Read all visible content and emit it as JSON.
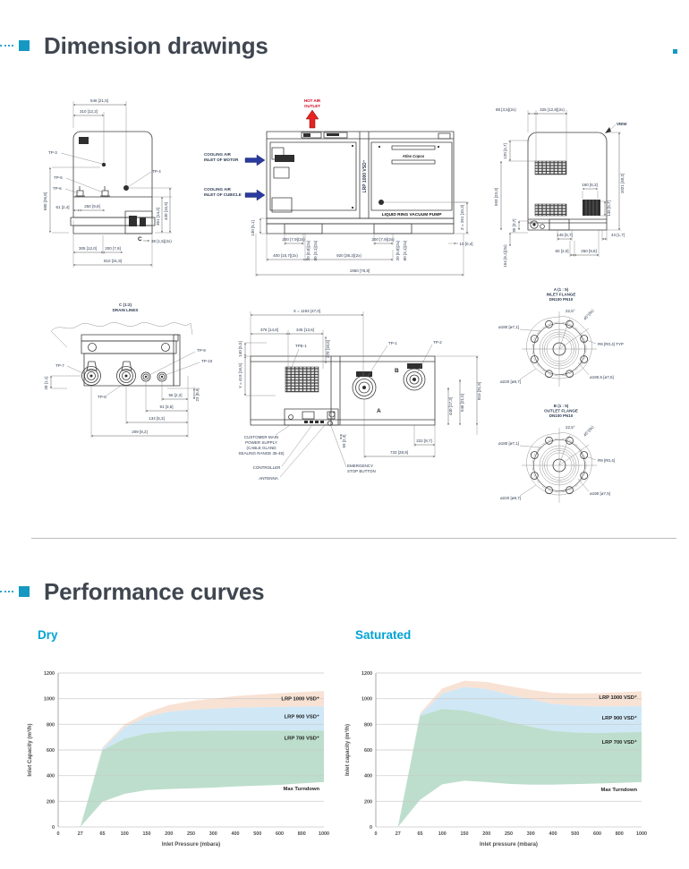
{
  "page": {
    "accent_color": "#1598c2",
    "headings": {
      "dimension": "Dimension drawings",
      "performance": "Performance curves"
    }
  },
  "drawings": {
    "front": {
      "labels": [
        "546 [21,5]",
        "310 [12,2]",
        "TP-3",
        "TP-4",
        "TP-5",
        "TP-6",
        "680 [26,8]",
        "61 [2,4]",
        "250 [9,8]",
        "361 [14,2]",
        "430 [16,9]",
        "C",
        "38 [1,5](2x)",
        "305 [12,0]",
        "200 [7,9]",
        "810 [31,9]"
      ]
    },
    "side": {
      "labels": [
        "HOT AIR",
        "OUTLET",
        "COOLING AIR",
        "INLET OF MOTOR",
        "COOLING AIR",
        "INLET OF CUBICLE",
        "LRP 1000 VSD⁺",
        "Atlas Copco",
        "LIQUID RING VACUUM PUMP",
        "130 [5,1]",
        "200 [7,9](2x)",
        "20 [0,8](2x)",
        "80 [3,1](2x)",
        "200 [7,9](2x)",
        "20 [0,8](2x)",
        "80 [3,1](2x)",
        "10 [0,4]",
        "400 [15,7](2x)",
        "920 [36,2](2x)",
        "1950 [76,8]",
        "Z = 261 [10,3]"
      ]
    },
    "rear": {
      "labels": [
        "88 [3,5](2x)",
        "325 [12,8](2x)",
        "VIEW",
        "120 [4,7]",
        "593 [23,3]",
        "95 [3,7]",
        "154 [6,1](3x)",
        "1021 [40,2]",
        "160 [6,3]",
        "145 [5,7]",
        "145 [5,7]",
        "43 [1,7]",
        "50 [2,0]",
        "250 [9,8]"
      ]
    },
    "drain": {
      "labels": [
        "C (1:2)",
        "DRAIN LINES",
        "TP-7",
        "TP-8",
        "TP-9",
        "TP-10",
        "28 [1,1]",
        "56 [2,2]",
        "23 [0,9]",
        "91 [3,6]",
        "134 [5,3]",
        "209 [8,2]"
      ]
    },
    "plan": {
      "labels": [
        "X = 1193 [47,0]",
        "376 [14,8]",
        "345 [13,6]",
        "270 [10,6]",
        "140 [5,5]",
        "Y = 419 [16,5]",
        "TPE-1",
        "TP-1",
        "TP-2",
        "A",
        "B",
        "810 [31,9]",
        "546 [21,5]",
        "440 [17,3]",
        "59 [2,3]",
        "222 [8,7]",
        "733 [28,9]",
        "CUSTOMER MAIN",
        "POWER SUPPLY",
        "(CABLE GLAND",
        "SEALING RANGE 35-45)",
        "CONTROLLER",
        "ANTENNA",
        "EMERGENCY",
        "STOP BUTTON"
      ]
    },
    "flange_a": {
      "labels": [
        "A (1 : 5)",
        "INLET FLANGE",
        "DN100 PN10",
        "22,5°",
        "45°(8x)",
        "ø180 [ø7,1]",
        "R9 [R0,4] TYP",
        "ø190,5 [ø7,5]",
        "ø220 [ø8,7]"
      ]
    },
    "flange_b": {
      "labels": [
        "B (1 : 5)",
        "OUTLET FLANGE",
        "DN100 PN10",
        "22,5°",
        "45°(8x)",
        "ø180 [ø7,1]",
        "R9 [R0,4]",
        "ø190 [ø7,5]",
        "ø220 [ø8,7]"
      ]
    }
  },
  "chart_data": [
    {
      "type": "area",
      "title": "Dry",
      "xlabel": "Inlet Pressure (mbara)",
      "ylabel": "Inlet Capacity (m³/h)",
      "x_categories": [
        0,
        27,
        65,
        100,
        150,
        200,
        250,
        300,
        400,
        500,
        600,
        800,
        1000
      ],
      "y_ticks": [
        0,
        200,
        400,
        600,
        800,
        1000,
        1200
      ],
      "ylim": [
        0,
        1200
      ],
      "grid": "horizontal",
      "legend_position": "inside-right",
      "series": [
        {
          "name": "LRP 1000 VSD⁺",
          "fill": "#f8e0d2",
          "values": [
            null,
            0,
            620,
            800,
            890,
            950,
            980,
            1000,
            1020,
            1032,
            1042,
            1052,
            1060
          ]
        },
        {
          "name": "LRP 900 VSD⁺",
          "fill": "#cde6f5",
          "values": [
            null,
            0,
            608,
            778,
            858,
            898,
            913,
            922,
            930,
            934,
            936,
            939,
            940
          ]
        },
        {
          "name": "LRP 700 VSD⁺",
          "fill": "#b9dcc9",
          "values": [
            null,
            0,
            598,
            688,
            730,
            744,
            748,
            750,
            751,
            751,
            751,
            751,
            750
          ]
        },
        {
          "name": "Max Turndown",
          "fill": "none",
          "values": [
            null,
            0,
            196,
            258,
            288,
            296,
            301,
            306,
            316,
            322,
            328,
            340,
            350
          ]
        }
      ],
      "annotations": [
        {
          "text": "LRP 1000 VSD⁺",
          "y": 1000
        },
        {
          "text": "LRP 900 VSD⁺",
          "y": 860
        },
        {
          "text": "LRP 700 VSD⁺",
          "y": 695
        },
        {
          "text": "Max Turndown",
          "y": 300
        }
      ]
    },
    {
      "type": "area",
      "title": "Saturated",
      "xlabel": "Inlet pressure (mbara)",
      "ylabel": "Inlet capacity (m³/h)",
      "x_categories": [
        0,
        27,
        65,
        100,
        150,
        200,
        250,
        300,
        400,
        500,
        600,
        800,
        1000
      ],
      "y_ticks": [
        0,
        200,
        400,
        600,
        800,
        1000,
        1200
      ],
      "ylim": [
        0,
        1200
      ],
      "grid": "horizontal",
      "legend_position": "inside-right",
      "series": [
        {
          "name": "LRP 1000 VSD⁺",
          "fill": "#f8e0d2",
          "values": [
            null,
            0,
            888,
            1080,
            1140,
            1130,
            1098,
            1068,
            1045,
            1040,
            1042,
            1050,
            1058
          ]
        },
        {
          "name": "LRP 900 VSD⁺",
          "fill": "#cde6f5",
          "values": [
            null,
            0,
            876,
            1040,
            1092,
            1074,
            1032,
            995,
            958,
            945,
            940,
            940,
            942
          ]
        },
        {
          "name": "LRP 700 VSD⁺",
          "fill": "#b9dcc9",
          "values": [
            null,
            0,
            866,
            920,
            908,
            868,
            820,
            782,
            748,
            736,
            732,
            736,
            740
          ]
        },
        {
          "name": "Max Turndown",
          "fill": "none",
          "values": [
            null,
            0,
            212,
            332,
            360,
            350,
            336,
            330,
            330,
            334,
            338,
            344,
            350
          ]
        }
      ],
      "annotations": [
        {
          "text": "LRP 1000 VSD⁺",
          "y": 1012
        },
        {
          "text": "LRP 900 VSD⁺",
          "y": 852
        },
        {
          "text": "LRP 700 VSD⁺",
          "y": 662
        },
        {
          "text": "Max Turndown",
          "y": 292
        }
      ]
    }
  ]
}
